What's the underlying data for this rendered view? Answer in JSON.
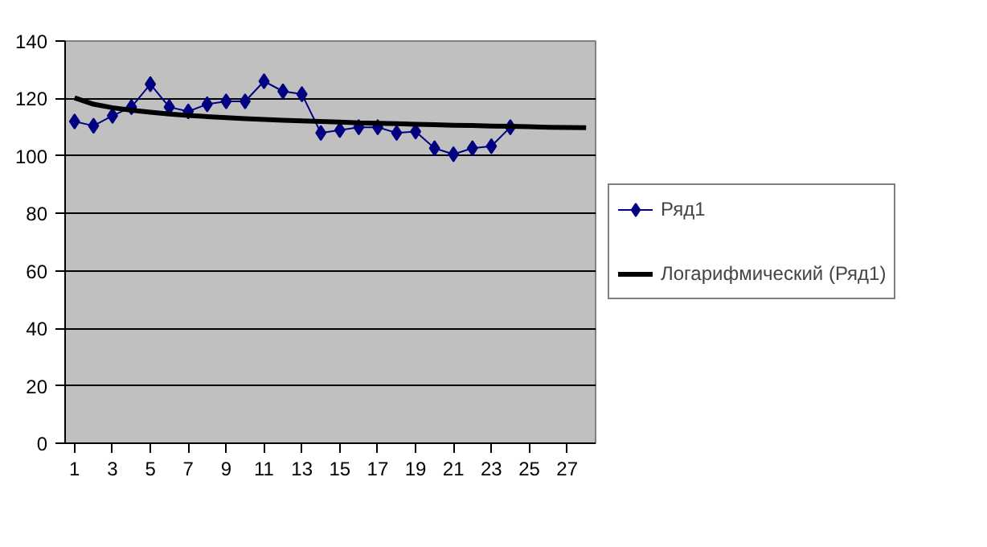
{
  "chart_data": {
    "type": "line",
    "x": [
      1,
      2,
      3,
      4,
      5,
      6,
      7,
      8,
      9,
      10,
      11,
      12,
      13,
      14,
      15,
      16,
      17,
      18,
      19,
      20,
      21,
      22,
      23,
      24,
      25,
      26,
      27,
      28
    ],
    "series": [
      {
        "name": "Ряд1",
        "color": "#000080",
        "marker": "diamond",
        "values": [
          112,
          110.5,
          114,
          117,
          125,
          117,
          115.5,
          118,
          119,
          119,
          126,
          122.5,
          121.5,
          108,
          109,
          110,
          110,
          108,
          108.5,
          102.7,
          100.6,
          102.7,
          103.4,
          110,
          null,
          null,
          null,
          null
        ]
      },
      {
        "name": "Логарифмический (Ряд1)",
        "color": "#000000",
        "marker": "none",
        "values": [
          120.2,
          118.0,
          116.8,
          115.9,
          115.2,
          114.6,
          114.1,
          113.7,
          113.3,
          113.0,
          112.7,
          112.4,
          112.2,
          112.0,
          111.8,
          111.5,
          111.4,
          111.2,
          111.0,
          110.9,
          110.7,
          110.6,
          110.4,
          110.3,
          110.2,
          110.0,
          109.9,
          109.8
        ]
      }
    ],
    "xlim": [
      0.5,
      28.5
    ],
    "xticks": [
      1,
      3,
      5,
      7,
      9,
      11,
      13,
      15,
      17,
      19,
      21,
      23,
      25,
      27
    ],
    "ylim": [
      0,
      140
    ],
    "yticks": [
      0,
      20,
      40,
      60,
      80,
      100,
      120,
      140
    ],
    "grid": "y",
    "legend": "right",
    "line_style": "solid"
  }
}
